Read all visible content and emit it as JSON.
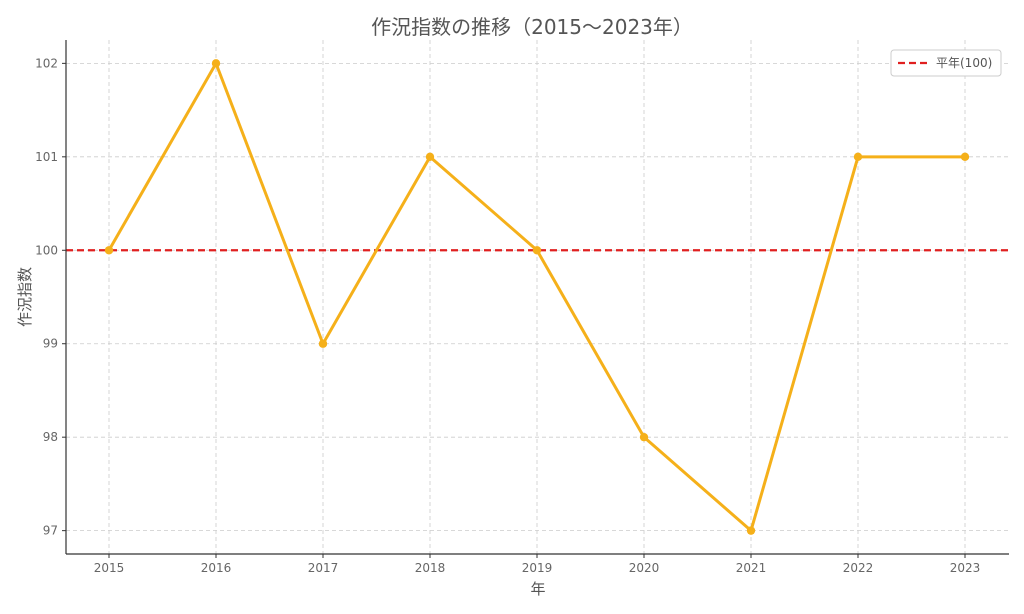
{
  "chart_data": {
    "type": "line",
    "title": "作況指数の推移（2015〜2023年）",
    "xlabel": "年",
    "ylabel": "作況指数",
    "categories": [
      "2015",
      "2016",
      "2017",
      "2018",
      "2019",
      "2020",
      "2021",
      "2022",
      "2023"
    ],
    "series": [
      {
        "values": [
          100,
          102,
          99,
          101,
          100,
          98,
          97,
          101,
          101
        ],
        "color": "#f5b01a"
      }
    ],
    "reference_line": {
      "label": "平年(100)",
      "value": 100,
      "color": "#e02020",
      "style": "dashed"
    },
    "yticks": [
      97,
      98,
      99,
      100,
      101,
      102
    ],
    "ylim": [
      96.75,
      102.25
    ],
    "grid": true,
    "legend_position": "top-right"
  }
}
